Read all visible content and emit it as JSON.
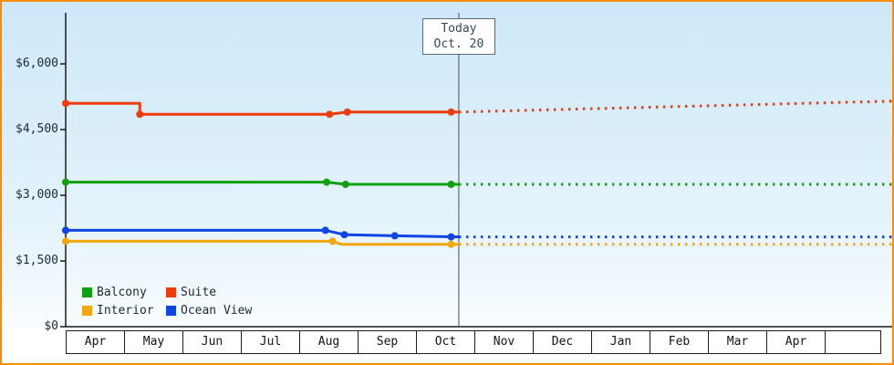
{
  "colors": {
    "frame_border": "#FF8C00",
    "bg_top": "#CDE8F9",
    "bg_bottom": "#FFFFFF",
    "axis": "#1A1A1A",
    "today_line": "#46525C"
  },
  "legend": {
    "items": [
      {
        "label": "Balcony",
        "color": "#10A010"
      },
      {
        "label": "Suite",
        "color": "#F03C0C"
      },
      {
        "label": "Interior",
        "color": "#F2A60F"
      },
      {
        "label": "Ocean View",
        "color": "#0E46E4"
      }
    ]
  },
  "chart_data": {
    "type": "line",
    "x_axis_months": [
      "Apr",
      "May",
      "Jun",
      "Jul",
      "Aug",
      "Sep",
      "Oct",
      "Nov",
      "Dec",
      "Jan",
      "Feb",
      "Mar",
      "Apr"
    ],
    "x_unit_note": "x measured in months: 0 = April tick, 1 = May tick, etc.",
    "xlim": [
      0,
      13.95
    ],
    "ylim": [
      0,
      7160
    ],
    "y_ticks": [
      {
        "value": 0,
        "label": "$0"
      },
      {
        "value": 1500,
        "label": "$1,500"
      },
      {
        "value": 3000,
        "label": "$3,000"
      },
      {
        "value": 4500,
        "label": "$4,500"
      },
      {
        "value": 6000,
        "label": "$6,000"
      }
    ],
    "today": {
      "label": "Today",
      "date": "Oct. 20",
      "x_months": 6.63
    },
    "series": [
      {
        "name": "Suite",
        "color": "#F03C0C",
        "solid": [
          [
            0,
            5100
          ],
          [
            1.25,
            5100
          ],
          [
            1.25,
            4850
          ],
          [
            4.45,
            4850
          ],
          [
            4.75,
            4900
          ],
          [
            6.63,
            4900
          ]
        ],
        "markers": [
          [
            0,
            5100
          ],
          [
            1.25,
            4850
          ],
          [
            4.45,
            4850
          ],
          [
            4.75,
            4900
          ],
          [
            6.5,
            4900
          ]
        ],
        "dotted_forecast": [
          [
            6.63,
            4900
          ],
          [
            13.95,
            5150
          ]
        ]
      },
      {
        "name": "Balcony",
        "color": "#10A010",
        "solid": [
          [
            0,
            3300
          ],
          [
            4.4,
            3300
          ],
          [
            4.72,
            3250
          ],
          [
            6.63,
            3250
          ]
        ],
        "markers": [
          [
            0,
            3300
          ],
          [
            4.4,
            3300
          ],
          [
            4.72,
            3250
          ],
          [
            6.5,
            3250
          ]
        ],
        "dotted_forecast": [
          [
            6.63,
            3250
          ],
          [
            13.95,
            3250
          ]
        ]
      },
      {
        "name": "Ocean View",
        "color": "#0E46E4",
        "solid": [
          [
            0,
            2200
          ],
          [
            4.38,
            2200
          ],
          [
            4.7,
            2100
          ],
          [
            5.55,
            2075
          ],
          [
            6.63,
            2050
          ]
        ],
        "markers": [
          [
            0,
            2200
          ],
          [
            4.38,
            2200
          ],
          [
            4.7,
            2100
          ],
          [
            5.55,
            2075
          ],
          [
            6.5,
            2050
          ]
        ],
        "dotted_forecast": [
          [
            6.63,
            2050
          ],
          [
            13.95,
            2050
          ]
        ]
      },
      {
        "name": "Interior",
        "color": "#F2A60F",
        "solid": [
          [
            0,
            1950
          ],
          [
            4.5,
            1950
          ],
          [
            4.65,
            1880
          ],
          [
            6.63,
            1880
          ]
        ],
        "markers": [
          [
            0,
            1950
          ],
          [
            4.5,
            1950
          ],
          [
            6.5,
            1880
          ]
        ],
        "dotted_forecast": [
          [
            6.63,
            1880
          ],
          [
            13.95,
            1880
          ]
        ]
      }
    ]
  }
}
